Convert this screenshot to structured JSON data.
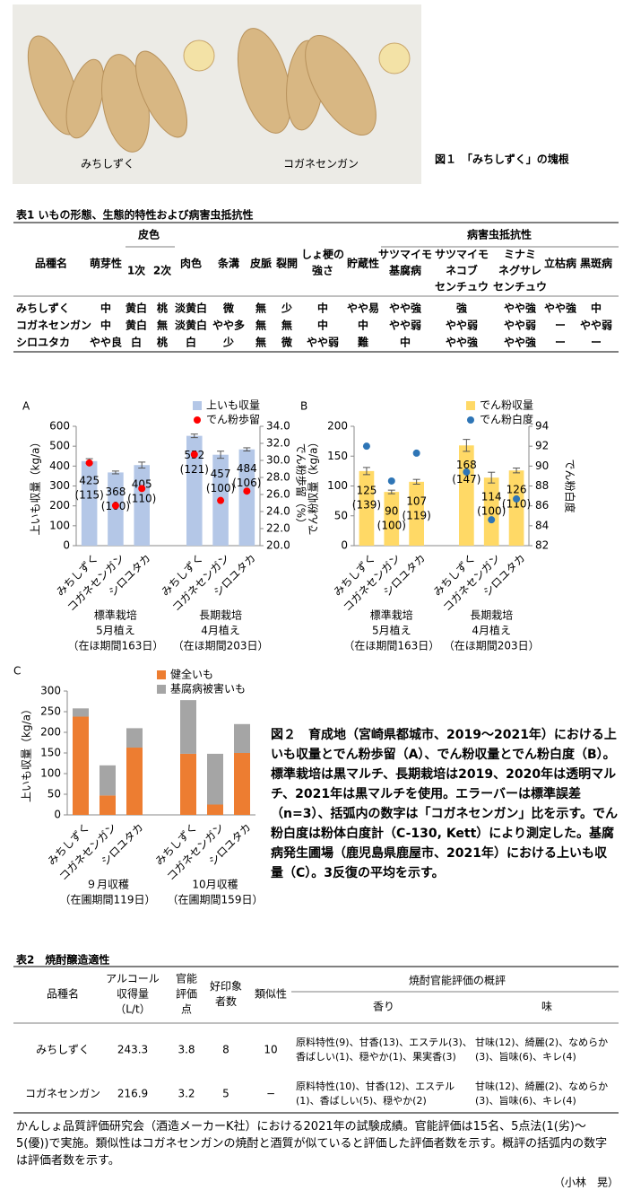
{
  "figure1": {
    "labels": [
      "みちしずく",
      "コガネセンガン"
    ],
    "caption": "図１　「みちしずく」の塊根"
  },
  "table1": {
    "title": "表1 いもの形態、生態的特性および病害虫抵抗性",
    "groups": [
      "皮色",
      "病害虫抵抗性"
    ],
    "columns": [
      [
        "品種名"
      ],
      [
        "萌芽性"
      ],
      [
        "1次"
      ],
      [
        "2次"
      ],
      [
        "肉色"
      ],
      [
        "条溝"
      ],
      [
        "皮脈"
      ],
      [
        "裂開"
      ],
      [
        "しょ梗の",
        "強さ"
      ],
      [
        "貯蔵性"
      ],
      [
        "サツマイモ",
        "基腐病"
      ],
      [
        "サツマイモ",
        "ネコブ",
        "センチュウ"
      ],
      [
        "ミナミ",
        "ネグサレ",
        "センチュウ"
      ],
      [
        "立枯病"
      ],
      [
        "黒斑病"
      ]
    ],
    "rows": [
      [
        "みちしずく",
        "中",
        "黄白",
        "桃",
        "淡黄白",
        "微",
        "無",
        "少",
        "中",
        "やや易",
        "やや強",
        "強",
        "やや強",
        "やや強",
        "中"
      ],
      [
        "コガネセンガン",
        "中",
        "黄白",
        "無",
        "淡黄白",
        "やや多",
        "無",
        "無",
        "中",
        "中",
        "やや弱",
        "やや弱",
        "やや弱",
        "ー",
        "やや弱"
      ],
      [
        "シロユタカ",
        "やや良",
        "白",
        "桃",
        "白",
        "少",
        "無",
        "微",
        "やや弱",
        "難",
        "中",
        "やや強",
        "やや強",
        "ー",
        "ー"
      ]
    ]
  },
  "chart_data": [
    {
      "type": "bar",
      "label": "A",
      "y_title": "上いも収量（kg/a）",
      "y2_title": "でん粉歩留（%）",
      "categories": [
        "みちしずく",
        "コガネセンガン",
        "シロユタカ",
        null,
        "みちしずく",
        "コガネセンガン",
        "シロユタカ"
      ],
      "group_labels": [
        [
          "標準栽培",
          "5月植え",
          "（在ほ期間163日）"
        ],
        [
          "長期栽培",
          "4月植え",
          "（在ほ期間203日）"
        ]
      ],
      "series": [
        {
          "name": "上いも収量",
          "color": "#b4c7e7",
          "values": [
            425,
            368,
            405,
            null,
            552,
            457,
            484
          ],
          "errors": [
            12,
            7,
            15,
            null,
            9,
            18,
            8
          ],
          "ratio_labels": [
            "(115)",
            "(100)",
            "(110)",
            null,
            "(121)",
            "(100)",
            "(106)"
          ]
        },
        {
          "name": "でん粉歩留",
          "color": "#ff0000",
          "axis": "y2",
          "values": [
            29.7,
            24.7,
            26.7,
            null,
            30.7,
            25.3,
            26.4
          ]
        }
      ],
      "ylim": [
        0,
        600
      ],
      "yticks": [
        0,
        100,
        200,
        300,
        400,
        500,
        600
      ],
      "y2lim": [
        20,
        34
      ],
      "y2ticks": [
        {
          "value": 20,
          "label": "20.0"
        },
        {
          "value": 22,
          "label": "22.0"
        },
        {
          "value": 24,
          "label": "24.0"
        },
        {
          "value": 26,
          "label": "26.0"
        },
        {
          "value": 28,
          "label": "28.0"
        },
        {
          "value": 30,
          "label": "30.0"
        },
        {
          "value": 32,
          "label": "32.0"
        },
        {
          "value": 34,
          "label": "34.0"
        }
      ]
    },
    {
      "type": "bar",
      "label": "B",
      "y_title": "でん粉収量（kg/a）",
      "y2_title": "でん粉白度",
      "categories": [
        "みちしずく",
        "コガネセンガン",
        "シロユタカ",
        null,
        "みちしずく",
        "コガネセンガン",
        "シロユタカ"
      ],
      "group_labels": [
        [
          "標準栽培",
          "5月植え",
          "（在ほ期間163日）"
        ],
        [
          "長期栽培",
          "4月植え",
          "（在ほ期間203日）"
        ]
      ],
      "series": [
        {
          "name": "でん粉収量",
          "color": "#ffd966",
          "values": [
            125,
            90,
            107,
            null,
            168,
            114,
            126
          ],
          "errors": [
            6,
            3,
            4,
            null,
            10,
            9,
            4
          ],
          "ratio_labels": [
            "(139)",
            "(100)",
            "(119)",
            null,
            "(147)",
            "(100)",
            "(110)"
          ]
        },
        {
          "name": "でん粉白度",
          "color": "#2e75b6",
          "axis": "y2",
          "values": [
            92.0,
            88.5,
            91.3,
            null,
            89.4,
            84.6,
            86.7
          ]
        }
      ],
      "ylim": [
        0,
        200
      ],
      "yticks": [
        0,
        50,
        100,
        150,
        200
      ],
      "y2lim": [
        82,
        94
      ],
      "y2ticks": [
        82,
        84,
        86,
        88,
        90,
        92,
        94
      ]
    },
    {
      "type": "stacked_bar",
      "label": "C",
      "y_title": "上いも収量（kg/a）",
      "categories": [
        "みちしずく",
        "コガネセンガン",
        "シロユタカ",
        null,
        "みちしずく",
        "コガネセンガン",
        "シロユタカ"
      ],
      "group_labels": [
        [
          "９月収穫",
          "（在圃期間119日）"
        ],
        [
          "10月収穫",
          "（在圃期間159日）"
        ]
      ],
      "series": [
        {
          "name": "健全いも",
          "color": "#ed7d31",
          "values": [
            238,
            47,
            163,
            null,
            148,
            25,
            150
          ]
        },
        {
          "name": "基腐病被害いも",
          "color": "#a5a5a5",
          "values": [
            20,
            73,
            47,
            null,
            130,
            123,
            70
          ]
        }
      ],
      "ylim": [
        0,
        300
      ],
      "yticks": [
        0,
        50,
        100,
        150,
        200,
        250,
        300
      ]
    }
  ],
  "figure2": {
    "caption": "図２　育成地（宮崎県都城市、2019～2021年）における上いも収量とでん粉歩留（A）、でん粉収量とでん粉白度（B）。標準栽培は黒マルチ、長期栽培は2019、2020年は透明マルチ、2021年は黒マルチを使用。エラーバーは標準誤差（n=3）、括弧内の数字は「コガネセンガン」比を示す。でん粉白度は粉体白度計（C-130, Kett）により測定した。基腐病発生圃場（鹿児島県鹿屋市、2021年）における上いも収量（C）。3反復の平均を示す。"
  },
  "table2": {
    "title": "表2　焼酎醸造適性",
    "columns": [
      [
        "品種名"
      ],
      [
        "アルコール",
        "収得量",
        "（L/t）"
      ],
      [
        "官能",
        "評価",
        "点"
      ],
      [
        "好印象",
        "者数"
      ],
      [
        "類似性"
      ]
    ],
    "group": "焼酎官能評価の概評",
    "subcolumns": [
      "香り",
      "味"
    ],
    "rows": [
      [
        "みちしずく",
        243.3,
        3.8,
        8,
        10,
        "原料特性(9)、甘香(13)、エステル(3)、香ばしい(1)、穏やか(1)、果実香(3)",
        "甘味(12)、綺麗(2)、なめらか(3)、旨味(6)、キレ(4)"
      ],
      [
        "コガネセンガン",
        216.9,
        3.2,
        5,
        "−",
        "原料特性(10)、甘香(12)、エステル(1)、香ばしい(5)、穏やか(2)",
        "甘味(12)、綺麗(2)、なめらか(3)、旨味(6)、キレ(4)"
      ]
    ]
  },
  "note": "かんしょ品質評価研究会（酒造メーカーK社）における2021年の試験成績。官能評価は15名、5点法(1(劣)～5(優))で実施。類似性はコガネセンガンの焼酎と酒質が似ていると評価した評価者数を示す。概評の括弧内の数字は評価者数を示す。",
  "author": "（小林　晃）"
}
